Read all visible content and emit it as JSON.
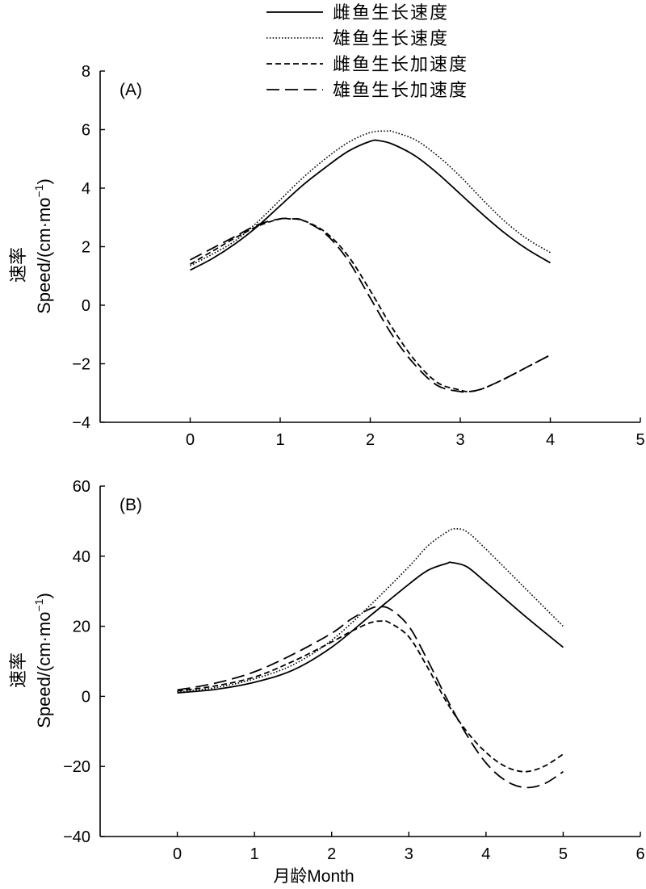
{
  "chart_data": [
    {
      "type": "line",
      "panel_label": "(A)",
      "ylabel_cn": "速率",
      "ylabel": "Speed/(cm·mo",
      "ylabel_sup": "−1",
      "ylabel_close": ")",
      "xlabel": "",
      "xlim": [
        -1,
        5
      ],
      "ylim": [
        -4,
        8
      ],
      "xticks": [
        0,
        1,
        2,
        3,
        4,
        5
      ],
      "yticks": [
        -4,
        -2,
        0,
        2,
        4,
        6,
        8
      ],
      "xtick_labels": [
        "0",
        "1",
        "2",
        "3",
        "4",
        "5"
      ],
      "ytick_labels": [
        "−4",
        "−2",
        "0",
        "2",
        "4",
        "6",
        "8"
      ],
      "legend_position": "top-center",
      "grid": false,
      "series": [
        {
          "name": "雌鱼生长速度",
          "style": "solid",
          "x": [
            0,
            0.25,
            0.5,
            0.75,
            1.0,
            1.25,
            1.5,
            1.75,
            2.0,
            2.1,
            2.25,
            2.5,
            2.75,
            3.0,
            3.25,
            3.5,
            3.75,
            4.0
          ],
          "y": [
            1.2,
            1.6,
            2.1,
            2.7,
            3.4,
            4.1,
            4.7,
            5.25,
            5.6,
            5.62,
            5.5,
            5.1,
            4.5,
            3.8,
            3.1,
            2.45,
            1.9,
            1.45
          ]
        },
        {
          "name": "雄鱼生长速度",
          "style": "dotted",
          "x": [
            0,
            0.25,
            0.5,
            0.75,
            1.0,
            1.25,
            1.5,
            1.75,
            2.0,
            2.2,
            2.25,
            2.5,
            2.75,
            3.0,
            3.25,
            3.5,
            3.75,
            4.0
          ],
          "y": [
            1.35,
            1.75,
            2.2,
            2.85,
            3.6,
            4.35,
            5.0,
            5.55,
            5.9,
            5.95,
            5.93,
            5.65,
            5.1,
            4.4,
            3.6,
            2.85,
            2.25,
            1.8
          ]
        },
        {
          "name": "雌鱼生长加速度",
          "style": "dashed",
          "x": [
            0,
            0.25,
            0.5,
            0.75,
            1.0,
            1.1,
            1.25,
            1.5,
            1.75,
            2.0,
            2.25,
            2.5,
            2.75,
            3.0,
            3.1,
            3.25,
            3.5,
            3.75,
            4.0
          ],
          "y": [
            1.4,
            1.85,
            2.3,
            2.7,
            2.95,
            2.95,
            2.9,
            2.5,
            1.7,
            0.5,
            -0.8,
            -1.9,
            -2.65,
            -2.9,
            -2.95,
            -2.85,
            -2.5,
            -2.1,
            -1.7
          ]
        },
        {
          "name": "雄鱼生长加速度",
          "style": "longdash",
          "x": [
            0,
            0.25,
            0.5,
            0.75,
            1.0,
            1.15,
            1.25,
            1.5,
            1.75,
            2.0,
            2.25,
            2.5,
            2.75,
            3.0,
            3.1,
            3.25,
            3.5,
            3.75,
            4.0
          ],
          "y": [
            1.55,
            1.95,
            2.35,
            2.75,
            2.95,
            2.95,
            2.9,
            2.45,
            1.55,
            0.25,
            -1.05,
            -2.05,
            -2.75,
            -2.95,
            -2.95,
            -2.85,
            -2.5,
            -2.1,
            -1.7
          ]
        }
      ]
    },
    {
      "type": "line",
      "panel_label": "(B)",
      "ylabel_cn": "速率",
      "ylabel": "Speed/(cm·mo",
      "ylabel_sup": "−1",
      "ylabel_close": ")",
      "xlabel": "月龄Month",
      "xlim": [
        -1,
        6
      ],
      "ylim": [
        -40,
        60
      ],
      "xticks": [
        0,
        1,
        2,
        3,
        4,
        5,
        6
      ],
      "yticks": [
        -40,
        -20,
        0,
        20,
        40,
        60
      ],
      "xtick_labels": [
        "0",
        "1",
        "2",
        "3",
        "4",
        "5",
        "6"
      ],
      "ytick_labels": [
        "−40",
        "−20",
        "0",
        "20",
        "40",
        "60"
      ],
      "grid": false,
      "series": [
        {
          "name": "雌鱼生长速度",
          "style": "solid",
          "x": [
            0,
            0.5,
            1.0,
            1.5,
            2.0,
            2.5,
            3.0,
            3.25,
            3.5,
            3.55,
            3.75,
            4.0,
            4.5,
            5.0
          ],
          "y": [
            1.0,
            2.0,
            4.0,
            7.5,
            14.0,
            23.0,
            32.0,
            36.0,
            38.0,
            38.2,
            37.0,
            32.5,
            23.0,
            14.0
          ]
        },
        {
          "name": "雄鱼生长速度",
          "style": "dotted",
          "x": [
            0,
            0.5,
            1.0,
            1.5,
            2.0,
            2.5,
            3.0,
            3.25,
            3.5,
            3.6,
            3.75,
            4.0,
            4.5,
            5.0
          ],
          "y": [
            1.2,
            2.5,
            5.0,
            9.0,
            16.0,
            26.0,
            37.0,
            43.0,
            47.0,
            47.8,
            47.0,
            42.0,
            31.0,
            20.0
          ]
        },
        {
          "name": "雌鱼生长加速度",
          "style": "dashed",
          "x": [
            0,
            0.5,
            1.0,
            1.5,
            2.0,
            2.25,
            2.5,
            2.65,
            2.75,
            3.0,
            3.25,
            3.5,
            3.75,
            4.0,
            4.25,
            4.5,
            4.75,
            5.0
          ],
          "y": [
            1.5,
            3.0,
            5.5,
            10.0,
            15.5,
            18.5,
            21.0,
            21.5,
            21.0,
            17.0,
            8.0,
            -2.0,
            -10.0,
            -16.0,
            -20.0,
            -21.5,
            -20.0,
            -16.5
          ]
        },
        {
          "name": "雄鱼生长加速度",
          "style": "longdash",
          "x": [
            0,
            0.5,
            1.0,
            1.5,
            2.0,
            2.25,
            2.5,
            2.6,
            2.75,
            3.0,
            3.25,
            3.5,
            3.75,
            4.0,
            4.25,
            4.5,
            4.75,
            5.0
          ],
          "y": [
            1.8,
            3.8,
            7.0,
            12.0,
            18.0,
            22.0,
            25.0,
            25.5,
            25.0,
            20.0,
            10.0,
            -1.0,
            -11.0,
            -19.0,
            -24.0,
            -26.0,
            -25.0,
            -21.5
          ]
        }
      ]
    }
  ]
}
